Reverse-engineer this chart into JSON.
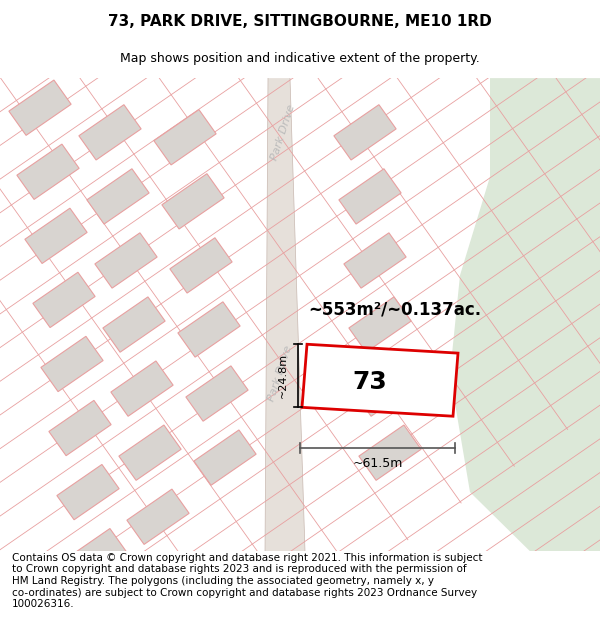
{
  "title": "73, PARK DRIVE, SITTINGBOURNE, ME10 1RD",
  "subtitle": "Map shows position and indicative extent of the property.",
  "footer": "Contains OS data © Crown copyright and database right 2021. This information is subject\nto Crown copyright and database rights 2023 and is reproduced with the permission of\nHM Land Registry. The polygons (including the associated geometry, namely x, y\nco-ordinates) are subject to Crown copyright and database rights 2023 Ordnance Survey\n100026316.",
  "bg_color": "#f5f2ef",
  "green_color": "#dce8d8",
  "road_color": "#e8e4e0",
  "plot_outline_color": "#dd0000",
  "property_line_color": "#e8a0a0",
  "property_block_color": "#d8d4d0",
  "area_label": "~553m²/~0.137ac.",
  "width_label": "~61.5m",
  "height_label": "~24.8m",
  "number_label": "73",
  "road_label": "Park Drive",
  "fig_width": 6.0,
  "fig_height": 6.25,
  "title_fontsize": 11,
  "subtitle_fontsize": 9,
  "footer_fontsize": 7.5
}
